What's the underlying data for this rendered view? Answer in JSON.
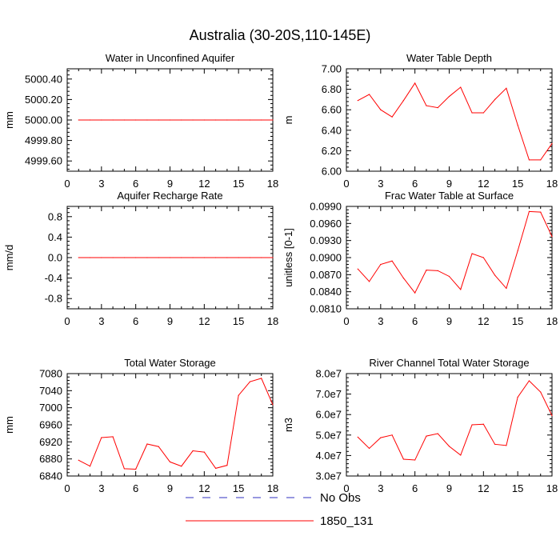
{
  "figure": {
    "title": "Australia (30-20S,110-145E)",
    "line_color": "#ff0000",
    "obs_color": "#3030c0",
    "legend": [
      {
        "label": "No Obs",
        "style": "dashed",
        "color": "#3030c0"
      },
      {
        "label": "1850_131",
        "style": "solid",
        "color": "#ff0000"
      }
    ]
  },
  "chart_data": [
    {
      "type": "line",
      "title": "Water in Unconfined Aquifer",
      "ylabel": "mm",
      "xlim": [
        0,
        18
      ],
      "xticks": [
        0,
        3,
        6,
        9,
        12,
        15,
        18
      ],
      "xtick_labels": [
        "0",
        "3",
        "6",
        "9",
        "12",
        "15",
        "18"
      ],
      "ylim": [
        4999.5,
        5000.5
      ],
      "yticks": [
        4999.6,
        4999.8,
        5000.0,
        5000.2,
        5000.4
      ],
      "ytick_labels": [
        "4999.60",
        "4999.80",
        "5000.00",
        "5000.20",
        "5000.40"
      ],
      "x": [
        1,
        2,
        3,
        4,
        5,
        6,
        7,
        8,
        9,
        10,
        11,
        12,
        13,
        14,
        15,
        16,
        17,
        18
      ],
      "series": [
        {
          "name": "1850_131",
          "values": [
            5000,
            5000,
            5000,
            5000,
            5000,
            5000,
            5000,
            5000,
            5000,
            5000,
            5000,
            5000,
            5000,
            5000,
            5000,
            5000,
            5000,
            5000
          ]
        }
      ]
    },
    {
      "type": "line",
      "title": "Water Table Depth",
      "ylabel": "m",
      "xlim": [
        0,
        18
      ],
      "xticks": [
        0,
        3,
        6,
        9,
        12,
        15,
        18
      ],
      "xtick_labels": [
        "0",
        "3",
        "6",
        "9",
        "12",
        "15",
        "18"
      ],
      "ylim": [
        6.0,
        7.0
      ],
      "yticks": [
        6.0,
        6.2,
        6.4,
        6.6,
        6.8,
        7.0
      ],
      "ytick_labels": [
        "6.00",
        "6.20",
        "6.40",
        "6.60",
        "6.80",
        "7.00"
      ],
      "x": [
        1,
        2,
        3,
        4,
        5,
        6,
        7,
        8,
        9,
        10,
        11,
        12,
        13,
        14,
        15,
        16,
        17,
        18
      ],
      "series": [
        {
          "name": "1850_131",
          "values": [
            6.69,
            6.75,
            6.6,
            6.53,
            6.69,
            6.86,
            6.64,
            6.62,
            6.73,
            6.82,
            6.57,
            6.57,
            6.7,
            6.81,
            6.45,
            6.11,
            6.11,
            6.27
          ]
        }
      ]
    },
    {
      "type": "line",
      "title": "Aquifer Recharge Rate",
      "ylabel": "mm/d",
      "xlim": [
        0,
        18
      ],
      "xticks": [
        0,
        3,
        6,
        9,
        12,
        15,
        18
      ],
      "xtick_labels": [
        "0",
        "3",
        "6",
        "9",
        "12",
        "15",
        "18"
      ],
      "ylim": [
        -1.0,
        1.0
      ],
      "yticks": [
        -0.8,
        -0.4,
        0.0,
        0.4,
        0.8
      ],
      "ytick_labels": [
        "-0.8",
        "-0.4",
        "0.0",
        "0.4",
        "0.8"
      ],
      "x": [
        1,
        2,
        3,
        4,
        5,
        6,
        7,
        8,
        9,
        10,
        11,
        12,
        13,
        14,
        15,
        16,
        17,
        18
      ],
      "series": [
        {
          "name": "1850_131",
          "values": [
            0,
            0,
            0,
            0,
            0,
            0,
            0,
            0,
            0,
            0,
            0,
            0,
            0,
            0,
            0,
            0,
            0,
            0
          ]
        }
      ]
    },
    {
      "type": "line",
      "title": "Frac Water Table at Surface",
      "ylabel": "unitless [0-1]",
      "xlim": [
        0,
        18
      ],
      "xticks": [
        0,
        3,
        6,
        9,
        12,
        15,
        18
      ],
      "xtick_labels": [
        "0",
        "3",
        "6",
        "9",
        "12",
        "15",
        "18"
      ],
      "ylim": [
        0.081,
        0.099
      ],
      "yticks": [
        0.081,
        0.084,
        0.087,
        0.09,
        0.093,
        0.096,
        0.099
      ],
      "ytick_labels": [
        "0.0810",
        "0.0840",
        "0.0870",
        "0.0900",
        "0.0930",
        "0.0960",
        "0.0990"
      ],
      "x": [
        1,
        2,
        3,
        4,
        5,
        6,
        7,
        8,
        9,
        10,
        11,
        12,
        13,
        14,
        15,
        16,
        17,
        18
      ],
      "series": [
        {
          "name": "1850_131",
          "values": [
            0.088,
            0.0858,
            0.0888,
            0.0894,
            0.0864,
            0.0838,
            0.0878,
            0.0877,
            0.0867,
            0.0844,
            0.0907,
            0.09,
            0.0869,
            0.0846,
            0.0912,
            0.0981,
            0.098,
            0.0937
          ]
        }
      ]
    },
    {
      "type": "line",
      "title": "Total Water Storage",
      "ylabel": "mm",
      "xlim": [
        0,
        18
      ],
      "xticks": [
        0,
        3,
        6,
        9,
        12,
        15,
        18
      ],
      "xtick_labels": [
        "0",
        "3",
        "6",
        "9",
        "12",
        "15",
        "18"
      ],
      "ylim": [
        6840,
        7080
      ],
      "yticks": [
        6840,
        6880,
        6920,
        6960,
        7000,
        7040,
        7080
      ],
      "ytick_labels": [
        "6840",
        "6880",
        "6920",
        "6960",
        "7000",
        "7040",
        "7080"
      ],
      "x": [
        1,
        2,
        3,
        4,
        5,
        6,
        7,
        8,
        9,
        10,
        11,
        12,
        13,
        14,
        15,
        16,
        17,
        18
      ],
      "series": [
        {
          "name": "1850_131",
          "values": [
            6877,
            6863,
            6930,
            6932,
            6857,
            6856,
            6915,
            6909,
            6873,
            6863,
            6899,
            6896,
            6858,
            6865,
            7029,
            7061,
            7069,
            7007
          ]
        }
      ]
    },
    {
      "type": "line",
      "title": "River Channel Total Water Storage",
      "ylabel": "m3",
      "xlim": [
        0,
        18
      ],
      "xticks": [
        0,
        3,
        6,
        9,
        12,
        15,
        18
      ],
      "xtick_labels": [
        "0",
        "3",
        "6",
        "9",
        "12",
        "15",
        "18"
      ],
      "ylim": [
        30000000,
        80000000
      ],
      "yticks": [
        30000000,
        40000000,
        50000000,
        60000000,
        70000000,
        80000000
      ],
      "ytick_labels": [
        "3.0e7",
        "4.0e7",
        "5.0e7",
        "6.0e7",
        "7.0e7",
        "8.0e7"
      ],
      "x": [
        1,
        2,
        3,
        4,
        5,
        6,
        7,
        8,
        9,
        10,
        11,
        12,
        13,
        14,
        15,
        16,
        17,
        18
      ],
      "series": [
        {
          "name": "1850_131",
          "values": [
            49000000,
            43500000,
            48700000,
            50000000,
            38200000,
            37800000,
            49500000,
            50700000,
            44500000,
            40200000,
            55000000,
            55300000,
            45500000,
            44900000,
            68500000,
            76500000,
            71000000,
            59500000
          ]
        }
      ]
    }
  ]
}
